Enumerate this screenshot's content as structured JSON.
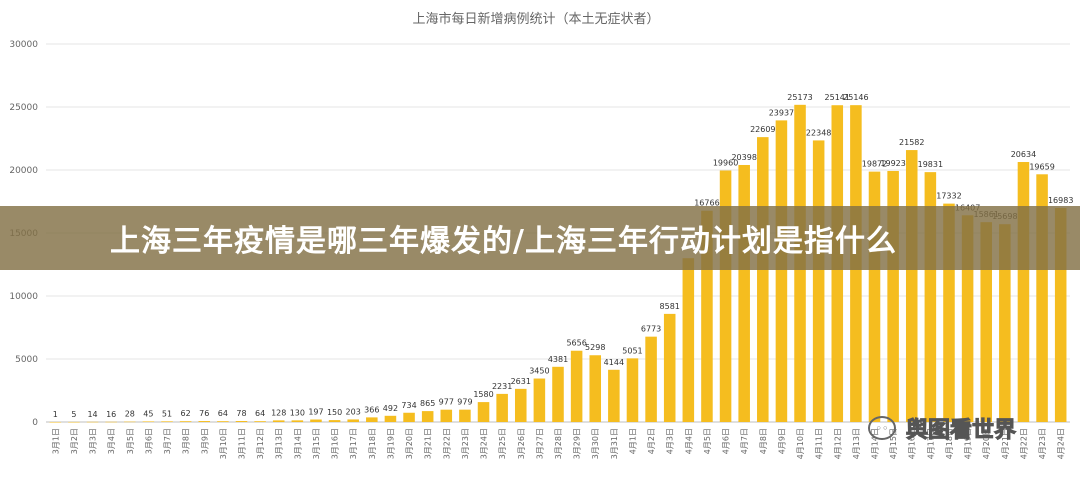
{
  "chart_data": {
    "type": "bar",
    "title": "上海市每日新增病例统计（本土无症状者）",
    "xlabel": "",
    "ylabel": "",
    "ylim": [
      0,
      30000
    ],
    "yticks": [
      "0",
      "5000",
      "10000",
      "15000",
      "20000",
      "25000",
      "30000"
    ],
    "grid": true,
    "bar_color": "#f5bd1f",
    "categories": [
      "3月1日",
      "3月2日",
      "3月3日",
      "3月4日",
      "3月5日",
      "3月6日",
      "3月7日",
      "3月8日",
      "3月9日",
      "3月10日",
      "3月11日",
      "3月12日",
      "3月13日",
      "3月14日",
      "3月15日",
      "3月16日",
      "3月17日",
      "3月18日",
      "3月19日",
      "3月20日",
      "3月21日",
      "3月22日",
      "3月23日",
      "3月24日",
      "3月25日",
      "3月26日",
      "3月27日",
      "3月28日",
      "3月29日",
      "3月30日",
      "3月31日",
      "4月1日",
      "4月2日",
      "4月3日",
      "4月4日",
      "4月5日",
      "4月6日",
      "4月7日",
      "4月8日",
      "4月9日",
      "4月10日",
      "4月11日",
      "4月12日",
      "4月13日",
      "4月14日",
      "4月15日",
      "4月16日",
      "4月17日",
      "4月18日",
      "4月19日",
      "4月20日",
      "4月21日",
      "4月22日",
      "4月23日",
      "4月24日"
    ],
    "values": [
      1,
      5,
      14,
      16,
      28,
      45,
      51,
      62,
      76,
      64,
      78,
      64,
      128,
      130,
      197,
      150,
      203,
      366,
      492,
      734,
      865,
      977,
      979,
      1580,
      2231,
      2631,
      3450,
      4381,
      5656,
      5298,
      4144,
      5051,
      6773,
      8581,
      13000,
      16766,
      19960,
      20398,
      22609,
      23937,
      25173,
      22348,
      25141,
      25146,
      19872,
      19923,
      21582,
      19831,
      17332,
      16407,
      15861,
      15698,
      20634,
      19659,
      16983
    ],
    "data_labels": [
      "1",
      "5",
      "14",
      "16",
      "28",
      "45",
      "51",
      "62",
      "76",
      "64",
      "78",
      "64",
      "128",
      "130",
      "197",
      "150",
      "203",
      "366",
      "492",
      "734",
      "865",
      "977",
      "979",
      "1580",
      "2231",
      "2631",
      "3450",
      "4381",
      "5656",
      "5298",
      "4144",
      "5051",
      "6773",
      "8581",
      "",
      "16766",
      "19960",
      "20398",
      "22609",
      "23937",
      "25173",
      "22348",
      "25141",
      "25146",
      "19872",
      "19923",
      "21582",
      "19831",
      "17332",
      "16407",
      "15861",
      "15698",
      "20634",
      "19659",
      "16983"
    ]
  },
  "overlay": {
    "headline": "上海三年疫情是哪三年爆发的/上海三年行动计划是指什么",
    "watermark": "舆图看世界",
    "watermark_icon": "wechat-icon"
  }
}
